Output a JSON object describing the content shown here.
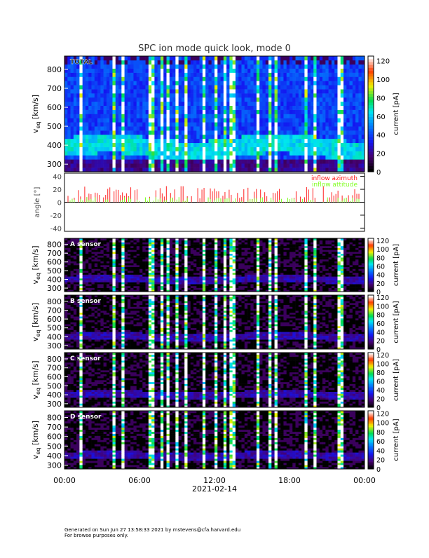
{
  "chart_data": {
    "type": "heatmap",
    "title": "SPC ion mode quick look, mode 0",
    "xlabel": "2021-02-14",
    "x_ticks": [
      "00:00",
      "06:00",
      "12:00",
      "18:00",
      "00:00"
    ],
    "x_range_hours": [
      0,
      24
    ],
    "panels": [
      {
        "label": "TOTAL",
        "ylabel_main": "v",
        "ylabel_sub": "eq",
        "ylabel_unit": " [km/s]",
        "y_ticks": [
          300,
          400,
          500,
          600,
          700,
          800
        ],
        "ylim": [
          260,
          870
        ],
        "colorbar": {
          "label": "current [pA]",
          "ticks": [
            0,
            20,
            40,
            60,
            80,
            100,
            120
          ],
          "range": [
            0,
            125
          ]
        },
        "colormap": "rainbow",
        "core_speed": 390
      },
      {
        "label": "A sensor",
        "ylabel_main": "v",
        "ylabel_sub": "eq",
        "ylabel_unit": " [km/s]",
        "y_ticks": [
          300,
          400,
          500,
          600,
          700,
          800
        ],
        "ylim": [
          260,
          870
        ],
        "colorbar": {
          "label": "current [pA]",
          "ticks": [
            0,
            20,
            40,
            60,
            80,
            100,
            120
          ],
          "range": [
            0,
            125
          ]
        },
        "colormap": "rainbow",
        "core_speed": 400
      },
      {
        "label": "B sensor",
        "ylabel_main": "v",
        "ylabel_sub": "eq",
        "ylabel_unit": " [km/s]",
        "y_ticks": [
          300,
          400,
          500,
          600,
          700,
          800
        ],
        "ylim": [
          260,
          870
        ],
        "colorbar": {
          "label": "current [pA]",
          "ticks": [
            0,
            20,
            40,
            60,
            80,
            100,
            120
          ],
          "range": [
            0,
            125
          ]
        },
        "colormap": "rainbow",
        "core_speed": 400
      },
      {
        "label": "C sensor",
        "ylabel_main": "v",
        "ylabel_sub": "eq",
        "ylabel_unit": " [km/s]",
        "y_ticks": [
          300,
          400,
          500,
          600,
          700,
          800
        ],
        "ylim": [
          260,
          870
        ],
        "colorbar": {
          "label": "current [pA]",
          "ticks": [
            0,
            20,
            40,
            60,
            80,
            100,
            120
          ],
          "range": [
            0,
            125
          ]
        },
        "colormap": "rainbow",
        "core_speed": 400
      },
      {
        "label": "D sensor",
        "ylabel_main": "v",
        "ylabel_sub": "eq",
        "ylabel_unit": " [km/s]",
        "y_ticks": [
          300,
          400,
          500,
          600,
          700,
          800
        ],
        "ylim": [
          260,
          870
        ],
        "colorbar": {
          "label": "current [pA]",
          "ticks": [
            0,
            20,
            40,
            60,
            80,
            100,
            120
          ],
          "range": [
            0,
            125
          ]
        },
        "colormap": "rainbow",
        "core_speed": 400
      }
    ],
    "angle_panel": {
      "type": "line",
      "ylabel": "angle [°]",
      "y_ticks": [
        -40,
        -20,
        0,
        20,
        40
      ],
      "ylim": [
        -45,
        45
      ],
      "series": [
        {
          "name": "inflow azimuth",
          "color": "#ff2020",
          "typical_range": [
            0,
            25
          ]
        },
        {
          "name": "inflow attitude",
          "color": "#80ff20",
          "typical_range": [
            0,
            8
          ]
        }
      ]
    }
  },
  "footer": {
    "line1": "Generated on Sun Jun 27 13:58:33 2021 by mstevens@cfa.harvard.edu",
    "line2": "For browse purposes only."
  }
}
